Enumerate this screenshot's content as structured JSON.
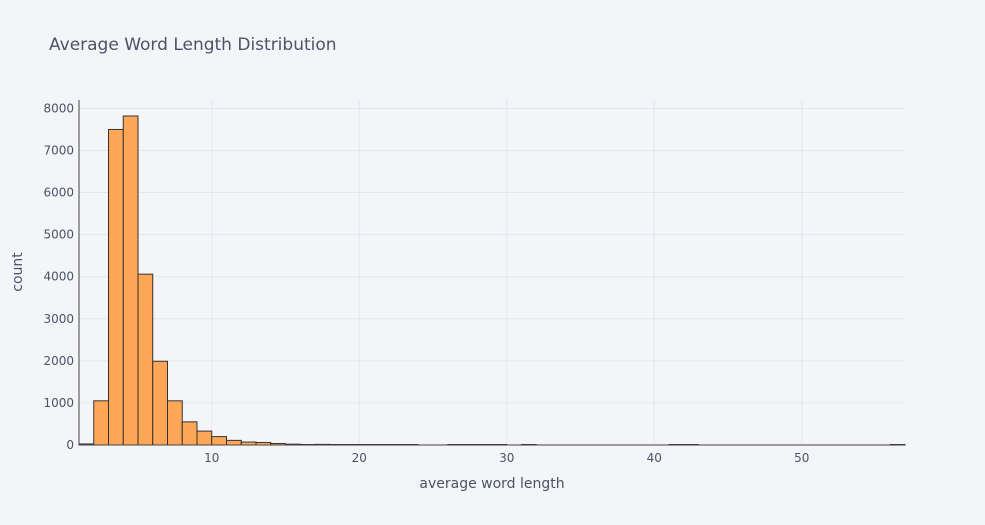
{
  "chart_data": {
    "type": "bar",
    "title": "Average Word Length Distribution",
    "xlabel": "average word length",
    "ylabel": "count",
    "xlim": [
      1.0,
      57.0
    ],
    "ylim": [
      0,
      8200
    ],
    "grid": true,
    "bar_color": "#ffa756",
    "bar_edge_color": "#333333",
    "bin_width": 1,
    "x_ticks": [
      {
        "value": 10,
        "label": "10"
      },
      {
        "value": 20,
        "label": "20"
      },
      {
        "value": 30,
        "label": "30"
      },
      {
        "value": 40,
        "label": "40"
      },
      {
        "value": 50,
        "label": "50"
      }
    ],
    "y_ticks": [
      {
        "value": 0,
        "label": "0"
      },
      {
        "value": 1000,
        "label": "1000"
      },
      {
        "value": 2000,
        "label": "2000"
      },
      {
        "value": 3000,
        "label": "3000"
      },
      {
        "value": 4000,
        "label": "4000"
      },
      {
        "value": 5000,
        "label": "5000"
      },
      {
        "value": 6000,
        "label": "6000"
      },
      {
        "value": 7000,
        "label": "7000"
      },
      {
        "value": 8000,
        "label": "8000"
      }
    ],
    "bins": [
      {
        "x0": 1,
        "value": 25
      },
      {
        "x0": 2,
        "value": 1050
      },
      {
        "x0": 3,
        "value": 7500
      },
      {
        "x0": 4,
        "value": 7820
      },
      {
        "x0": 5,
        "value": 4060
      },
      {
        "x0": 6,
        "value": 1990
      },
      {
        "x0": 7,
        "value": 1050
      },
      {
        "x0": 8,
        "value": 550
      },
      {
        "x0": 9,
        "value": 330
      },
      {
        "x0": 10,
        "value": 200
      },
      {
        "x0": 11,
        "value": 110
      },
      {
        "x0": 12,
        "value": 70
      },
      {
        "x0": 13,
        "value": 60
      },
      {
        "x0": 14,
        "value": 35
      },
      {
        "x0": 15,
        "value": 20
      },
      {
        "x0": 16,
        "value": 12
      },
      {
        "x0": 17,
        "value": 15
      },
      {
        "x0": 18,
        "value": 10
      },
      {
        "x0": 19,
        "value": 8
      },
      {
        "x0": 20,
        "value": 6
      },
      {
        "x0": 21,
        "value": 5
      },
      {
        "x0": 22,
        "value": 4
      },
      {
        "x0": 23,
        "value": 3
      },
      {
        "x0": 26,
        "value": 4
      },
      {
        "x0": 27,
        "value": 3
      },
      {
        "x0": 28,
        "value": 3
      },
      {
        "x0": 29,
        "value": 2
      },
      {
        "x0": 31,
        "value": 3
      },
      {
        "x0": 41,
        "value": 4
      },
      {
        "x0": 42,
        "value": 3
      },
      {
        "x0": 56,
        "value": 12
      }
    ]
  }
}
